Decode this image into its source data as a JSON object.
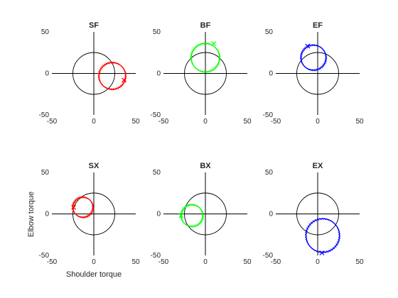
{
  "chart_data": {
    "type": "scatter",
    "xlabel": "Shoulder torque",
    "ylabel": "Elbow torque",
    "xlim": [
      -50,
      50
    ],
    "ylim": [
      -50,
      50
    ],
    "xticks": [
      -50,
      0,
      50
    ],
    "yticks": [
      -50,
      0,
      50
    ],
    "grid": false,
    "reference_circle": {
      "center": [
        0,
        0
      ],
      "radius": 25,
      "color": "#000000"
    },
    "panels": [
      {
        "title": "SF",
        "color": "#ff0000",
        "loop": {
          "center": [
            22,
            -3
          ],
          "radius": 16
        },
        "marker": [
          36,
          -8
        ]
      },
      {
        "title": "BF",
        "color": "#00ff00",
        "loop": {
          "center": [
            0,
            19
          ],
          "radius": 17
        },
        "marker": [
          10,
          36
        ]
      },
      {
        "title": "EF",
        "color": "#0000ff",
        "loop": {
          "center": [
            -5,
            19
          ],
          "radius": 15
        },
        "marker": [
          -12,
          33
        ]
      },
      {
        "title": "SX",
        "color": "#ff0000",
        "loop": {
          "center": [
            -13,
            8
          ],
          "radius": 12
        },
        "marker": [
          -24,
          8
        ]
      },
      {
        "title": "BX",
        "color": "#00ff00",
        "loop": {
          "center": [
            -16,
            -2
          ],
          "radius": 13
        },
        "marker": [
          -29,
          -2
        ]
      },
      {
        "title": "EX",
        "color": "#0000ff",
        "loop": {
          "center": [
            6,
            -26
          ],
          "radius": 20
        },
        "marker": [
          5,
          -47
        ]
      }
    ]
  }
}
